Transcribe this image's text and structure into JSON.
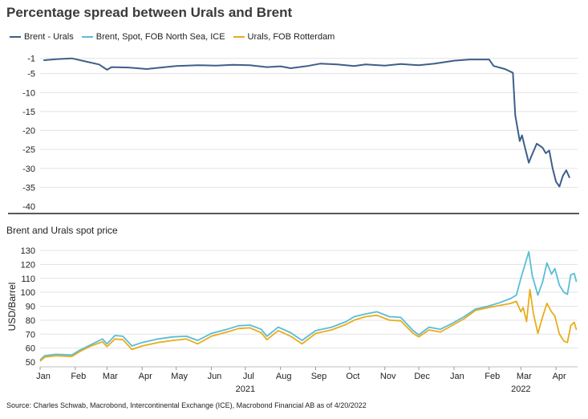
{
  "title": "Percentage spread between Urals and Brent",
  "subtitle": "Brent and Urals spot price",
  "source": "Source: Charles Schwab, Macrobond, Intercontinental Exchange (ICE), Macrobond Financial AB as of 4/20/2022",
  "legend": [
    {
      "name": "Brent - Urals",
      "color": "#3d5f8a"
    },
    {
      "name": "Brent, Spot, FOB North Sea, ICE",
      "color": "#5bbcd6"
    },
    {
      "name": "Urals, FOB Rotterdam",
      "color": "#e8ad1c"
    }
  ],
  "chart_data": [
    {
      "type": "line",
      "title": "Percentage spread between Urals and Brent",
      "ylim": [
        -40,
        0
      ],
      "yticks": [
        -1,
        -5,
        -10,
        -15,
        -20,
        -25,
        -30,
        -35,
        -40
      ],
      "grid": true,
      "legend_position": "top-left",
      "series": [
        {
          "name": "Brent - Urals",
          "color": "#3d5f8a",
          "points": [
            [
              "2021-01-04",
              -1.5
            ],
            [
              "2021-01-15",
              -1.2
            ],
            [
              "2021-01-29",
              -1.0
            ],
            [
              "2021-02-10",
              -1.8
            ],
            [
              "2021-02-22",
              -2.6
            ],
            [
              "2021-03-01",
              -4.0
            ],
            [
              "2021-03-05",
              -3.3
            ],
            [
              "2021-03-20",
              -3.4
            ],
            [
              "2021-04-05",
              -3.8
            ],
            [
              "2021-04-15",
              -3.5
            ],
            [
              "2021-05-01",
              -3.0
            ],
            [
              "2021-05-20",
              -2.8
            ],
            [
              "2021-06-05",
              -2.9
            ],
            [
              "2021-06-20",
              -2.7
            ],
            [
              "2021-07-05",
              -2.8
            ],
            [
              "2021-07-20",
              -3.3
            ],
            [
              "2021-08-01",
              -3.1
            ],
            [
              "2021-08-10",
              -3.6
            ],
            [
              "2021-08-25",
              -3.0
            ],
            [
              "2021-09-05",
              -2.4
            ],
            [
              "2021-09-20",
              -2.6
            ],
            [
              "2021-10-05",
              -3.0
            ],
            [
              "2021-10-15",
              -2.6
            ],
            [
              "2021-11-01",
              -2.9
            ],
            [
              "2021-11-15",
              -2.5
            ],
            [
              "2021-12-01",
              -2.8
            ],
            [
              "2021-12-15",
              -2.4
            ],
            [
              "2022-01-01",
              -1.6
            ],
            [
              "2022-01-15",
              -1.3
            ],
            [
              "2022-02-01",
              -1.3
            ],
            [
              "2022-02-05",
              -3.0
            ],
            [
              "2022-02-15",
              -3.8
            ],
            [
              "2022-02-22",
              -4.8
            ],
            [
              "2022-02-24",
              -16.0
            ],
            [
              "2022-02-28",
              -22.8
            ],
            [
              "2022-03-02",
              -21.3
            ],
            [
              "2022-03-05",
              -25.0
            ],
            [
              "2022-03-08",
              -28.5
            ],
            [
              "2022-03-10",
              -27.0
            ],
            [
              "2022-03-15",
              -23.5
            ],
            [
              "2022-03-20",
              -24.5
            ],
            [
              "2022-03-23",
              -26.0
            ],
            [
              "2022-03-26",
              -25.3
            ],
            [
              "2022-03-29",
              -30.0
            ],
            [
              "2022-04-01",
              -33.5
            ],
            [
              "2022-04-04",
              -34.8
            ],
            [
              "2022-04-07",
              -32.0
            ],
            [
              "2022-04-10",
              -30.5
            ],
            [
              "2022-04-13",
              -32.5
            ]
          ]
        }
      ]
    },
    {
      "type": "line",
      "title": "Brent and Urals spot price",
      "ylabel": "USD/Barrel",
      "ylim": [
        50,
        130
      ],
      "yticks": [
        50,
        60,
        70,
        80,
        90,
        100,
        110,
        120,
        130
      ],
      "x_tick_labels": [
        "Jan",
        "Feb",
        "Mar",
        "Apr",
        "May",
        "Jun",
        "Jul",
        "Aug",
        "Sep",
        "Oct",
        "Nov",
        "Dec",
        "Jan",
        "Feb",
        "Mar",
        "Apr"
      ],
      "x_year_labels": [
        {
          "label": "2021",
          "date": "2021-07-01"
        },
        {
          "label": "2022",
          "date": "2022-03-01"
        }
      ],
      "grid": true,
      "series": [
        {
          "name": "Brent, Spot, FOB North Sea, ICE",
          "color": "#5bbcd6",
          "points": [
            [
              "2021-01-01",
              51.5
            ],
            [
              "2021-01-05",
              54.5
            ],
            [
              "2021-01-15",
              55.5
            ],
            [
              "2021-01-29",
              55.0
            ],
            [
              "2021-02-05",
              58.5
            ],
            [
              "2021-02-15",
              62.5
            ],
            [
              "2021-02-25",
              66.5
            ],
            [
              "2021-03-01",
              63.0
            ],
            [
              "2021-03-08",
              69.0
            ],
            [
              "2021-03-15",
              68.5
            ],
            [
              "2021-03-23",
              61.5
            ],
            [
              "2021-04-01",
              64.0
            ],
            [
              "2021-04-15",
              66.5
            ],
            [
              "2021-04-28",
              68.0
            ],
            [
              "2021-05-10",
              68.5
            ],
            [
              "2021-05-20",
              65.5
            ],
            [
              "2021-06-01",
              70.5
            ],
            [
              "2021-06-15",
              73.5
            ],
            [
              "2021-06-25",
              76.0
            ],
            [
              "2021-07-05",
              76.5
            ],
            [
              "2021-07-15",
              73.5
            ],
            [
              "2021-07-20",
              68.5
            ],
            [
              "2021-07-30",
              75.0
            ],
            [
              "2021-08-10",
              71.0
            ],
            [
              "2021-08-20",
              65.5
            ],
            [
              "2021-09-01",
              72.5
            ],
            [
              "2021-09-15",
              75.0
            ],
            [
              "2021-09-28",
              79.0
            ],
            [
              "2021-10-05",
              82.5
            ],
            [
              "2021-10-15",
              84.5
            ],
            [
              "2021-10-25",
              86.0
            ],
            [
              "2021-11-05",
              82.5
            ],
            [
              "2021-11-15",
              82.0
            ],
            [
              "2021-11-26",
              72.5
            ],
            [
              "2021-12-01",
              69.5
            ],
            [
              "2021-12-10",
              75.0
            ],
            [
              "2021-12-20",
              73.5
            ],
            [
              "2021-12-31",
              78.0
            ],
            [
              "2022-01-10",
              82.5
            ],
            [
              "2022-01-20",
              88.0
            ],
            [
              "2022-01-31",
              90.0
            ],
            [
              "2022-02-10",
              92.5
            ],
            [
              "2022-02-20",
              95.5
            ],
            [
              "2022-02-25",
              98.0
            ],
            [
              "2022-03-01",
              110.0
            ],
            [
              "2022-03-08",
              129.0
            ],
            [
              "2022-03-11",
              112.0
            ],
            [
              "2022-03-16",
              98.0
            ],
            [
              "2022-03-20",
              107.0
            ],
            [
              "2022-03-24",
              121.0
            ],
            [
              "2022-03-28",
              113.0
            ],
            [
              "2022-03-31",
              117.0
            ],
            [
              "2022-04-04",
              105.0
            ],
            [
              "2022-04-08",
              100.0
            ],
            [
              "2022-04-11",
              98.5
            ],
            [
              "2022-04-14",
              112.5
            ],
            [
              "2022-04-17",
              113.5
            ],
            [
              "2022-04-19",
              107.5
            ]
          ]
        },
        {
          "name": "Urals, FOB Rotterdam",
          "color": "#e8ad1c",
          "points": [
            [
              "2021-01-01",
              50.5
            ],
            [
              "2021-01-05",
              53.5
            ],
            [
              "2021-01-15",
              54.5
            ],
            [
              "2021-01-29",
              54.0
            ],
            [
              "2021-02-05",
              57.5
            ],
            [
              "2021-02-15",
              61.5
            ],
            [
              "2021-02-25",
              64.5
            ],
            [
              "2021-03-01",
              61.0
            ],
            [
              "2021-03-08",
              66.5
            ],
            [
              "2021-03-15",
              66.0
            ],
            [
              "2021-03-23",
              59.0
            ],
            [
              "2021-04-01",
              61.5
            ],
            [
              "2021-04-15",
              64.0
            ],
            [
              "2021-04-28",
              65.5
            ],
            [
              "2021-05-10",
              66.5
            ],
            [
              "2021-05-20",
              63.0
            ],
            [
              "2021-06-01",
              68.5
            ],
            [
              "2021-06-15",
              71.5
            ],
            [
              "2021-06-25",
              74.0
            ],
            [
              "2021-07-05",
              74.5
            ],
            [
              "2021-07-15",
              71.0
            ],
            [
              "2021-07-20",
              66.0
            ],
            [
              "2021-07-30",
              72.5
            ],
            [
              "2021-08-10",
              68.5
            ],
            [
              "2021-08-20",
              63.0
            ],
            [
              "2021-09-01",
              70.5
            ],
            [
              "2021-09-15",
              73.0
            ],
            [
              "2021-09-28",
              77.0
            ],
            [
              "2021-10-05",
              80.0
            ],
            [
              "2021-10-15",
              82.5
            ],
            [
              "2021-10-25",
              83.5
            ],
            [
              "2021-11-05",
              80.0
            ],
            [
              "2021-11-15",
              79.5
            ],
            [
              "2021-11-26",
              70.5
            ],
            [
              "2021-12-01",
              68.0
            ],
            [
              "2021-12-10",
              73.0
            ],
            [
              "2021-12-20",
              71.5
            ],
            [
              "2021-12-31",
              76.5
            ],
            [
              "2022-01-10",
              81.0
            ],
            [
              "2022-01-20",
              87.0
            ],
            [
              "2022-01-31",
              89.0
            ],
            [
              "2022-02-10",
              90.5
            ],
            [
              "2022-02-20",
              92.0
            ],
            [
              "2022-02-25",
              93.5
            ],
            [
              "2022-03-01",
              86.0
            ],
            [
              "2022-03-03",
              89.0
            ],
            [
              "2022-03-06",
              79.0
            ],
            [
              "2022-03-09",
              102.0
            ],
            [
              "2022-03-12",
              85.0
            ],
            [
              "2022-03-16",
              70.5
            ],
            [
              "2022-03-20",
              82.0
            ],
            [
              "2022-03-24",
              92.0
            ],
            [
              "2022-03-28",
              86.0
            ],
            [
              "2022-03-31",
              83.0
            ],
            [
              "2022-04-04",
              70.0
            ],
            [
              "2022-04-08",
              65.0
            ],
            [
              "2022-04-11",
              64.0
            ],
            [
              "2022-04-14",
              76.0
            ],
            [
              "2022-04-17",
              78.5
            ],
            [
              "2022-04-19",
              73.0
            ]
          ]
        }
      ]
    }
  ]
}
